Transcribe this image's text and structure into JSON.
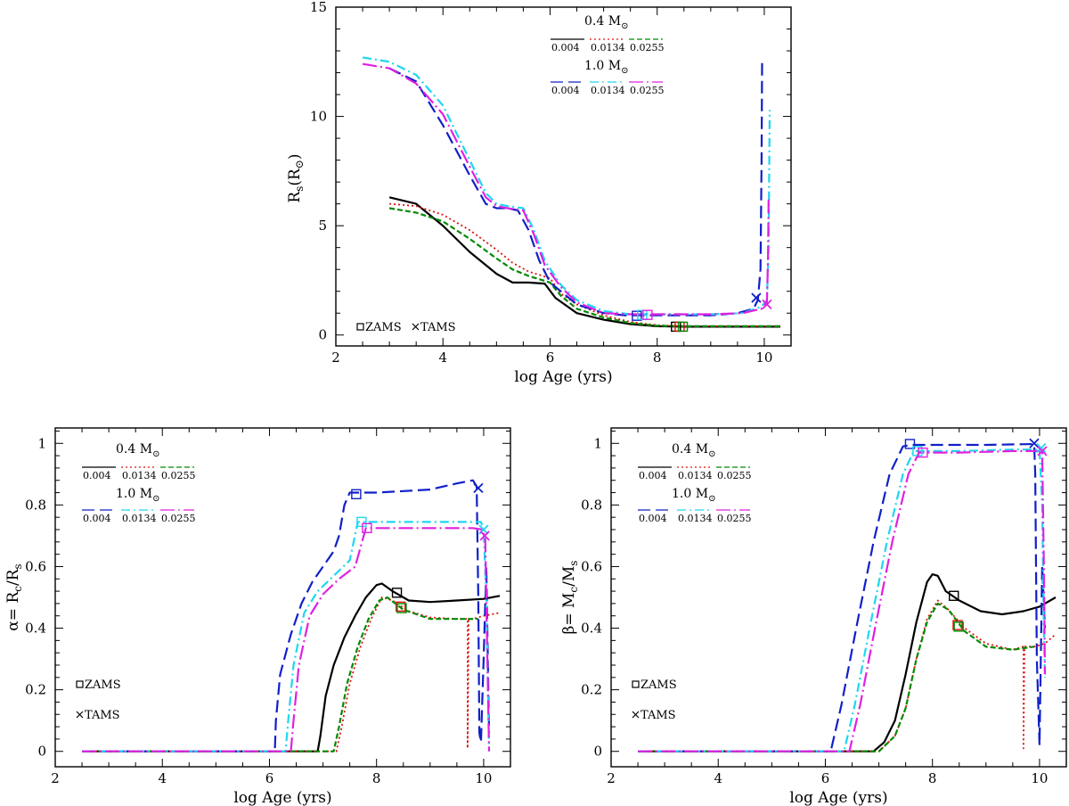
{
  "colors": {
    "black": "#000000",
    "red": "#e01010",
    "green": "#008a00",
    "blue": "#1020c8",
    "cyan": "#1ed6f0",
    "magenta": "#e020e0"
  },
  "chart_data": [
    {
      "id": "top",
      "type": "line",
      "xlabel": "log Age (yrs)",
      "ylabel": "R_s(R_⊙)",
      "ylabel_main": "R",
      "ylabel_sub": "s",
      "ylabel_rest": "(R",
      "ylabel_sun": "⊙",
      "ylabel_close": ")",
      "xlim": [
        2,
        10.5
      ],
      "ylim": [
        -0.5,
        15
      ],
      "xticks": [
        2,
        4,
        6,
        8,
        10
      ],
      "yticks": [
        0,
        5,
        10,
        15
      ],
      "legend": {
        "mass_low": "0.4 M",
        "mass_high": "1.0 M",
        "sun": "⊙",
        "z_values": [
          "0.004",
          "0.0134",
          "0.0255"
        ],
        "zams_label": "ZAMS",
        "tams_label": "TAMS"
      },
      "series": [
        {
          "name": "0.4 M⊙, Z=0.004",
          "color": "black",
          "dash": "solid",
          "x": [
            3.0,
            3.5,
            4.0,
            4.5,
            5.0,
            5.3,
            5.6,
            5.9,
            6.1,
            6.5,
            7.0,
            7.5,
            8.0,
            8.5,
            9.0,
            9.5,
            10.0,
            10.3
          ],
          "y": [
            6.3,
            6.0,
            5.0,
            3.8,
            2.8,
            2.4,
            2.4,
            2.35,
            1.7,
            1.0,
            0.7,
            0.5,
            0.4,
            0.38,
            0.38,
            0.38,
            0.38,
            0.38
          ]
        },
        {
          "name": "0.4 M⊙, Z=0.0134",
          "color": "red",
          "dash": "dot",
          "x": [
            3.0,
            3.5,
            4.0,
            4.5,
            5.0,
            5.3,
            5.6,
            6.0,
            6.2,
            6.5,
            7.0,
            7.5,
            8.0,
            8.5,
            9.0,
            9.5,
            10.0,
            10.3
          ],
          "y": [
            6.0,
            5.9,
            5.5,
            4.8,
            3.9,
            3.3,
            2.9,
            2.6,
            1.9,
            1.4,
            0.9,
            0.6,
            0.45,
            0.4,
            0.4,
            0.4,
            0.4,
            0.4
          ]
        },
        {
          "name": "0.4 M⊙, Z=0.0255",
          "color": "green",
          "dash": "dash-short",
          "x": [
            3.0,
            3.5,
            4.0,
            4.5,
            5.0,
            5.3,
            5.6,
            6.0,
            6.2,
            6.5,
            7.0,
            7.5,
            8.0,
            8.5,
            9.0,
            9.5,
            10.0,
            10.3
          ],
          "y": [
            5.8,
            5.6,
            5.2,
            4.4,
            3.5,
            3.0,
            2.7,
            2.4,
            1.8,
            1.2,
            0.8,
            0.55,
            0.42,
            0.4,
            0.4,
            0.4,
            0.4,
            0.4
          ]
        },
        {
          "name": "1.0 M⊙, Z=0.004",
          "color": "blue",
          "dash": "dash-long",
          "x": [
            3.0,
            3.5,
            4.0,
            4.5,
            4.8,
            5.0,
            5.2,
            5.4,
            5.6,
            5.8,
            6.0,
            6.5,
            7.0,
            7.4,
            8.0,
            9.0,
            9.5,
            9.8,
            9.88,
            9.93,
            9.95,
            9.96
          ],
          "y": [
            12.2,
            11.6,
            9.6,
            7.3,
            6.0,
            5.8,
            5.8,
            5.7,
            4.8,
            3.4,
            2.4,
            1.4,
            1.0,
            0.9,
            0.9,
            0.9,
            1.0,
            1.2,
            1.6,
            3.0,
            8.0,
            12.6
          ]
        },
        {
          "name": "1.0 M⊙, Z=0.0134",
          "color": "cyan",
          "dash": "dash-dot",
          "x": [
            2.5,
            3.0,
            3.5,
            4.0,
            4.5,
            4.8,
            5.0,
            5.2,
            5.5,
            5.7,
            5.9,
            6.2,
            6.5,
            7.0,
            7.5,
            8.0,
            9.0,
            9.6,
            9.95,
            10.05,
            10.08,
            10.1
          ],
          "y": [
            12.7,
            12.5,
            11.9,
            10.5,
            8.0,
            6.5,
            6.0,
            5.9,
            5.8,
            4.8,
            3.4,
            2.3,
            1.6,
            1.1,
            0.95,
            0.95,
            0.95,
            1.0,
            1.3,
            1.6,
            4.0,
            10.3
          ]
        },
        {
          "name": "1.0 M⊙, Z=0.0255",
          "color": "magenta",
          "dash": "dash-dot-long",
          "x": [
            2.5,
            3.0,
            3.5,
            4.0,
            4.5,
            4.8,
            5.0,
            5.2,
            5.5,
            5.7,
            5.9,
            6.2,
            6.5,
            7.0,
            7.5,
            8.0,
            9.0,
            9.6,
            9.95,
            10.05,
            10.07,
            10.08
          ],
          "y": [
            12.4,
            12.2,
            11.5,
            10.1,
            7.7,
            6.3,
            5.9,
            5.8,
            5.7,
            4.6,
            3.2,
            2.2,
            1.5,
            1.0,
            0.95,
            0.95,
            0.95,
            1.0,
            1.2,
            1.5,
            3.5,
            6.2
          ]
        }
      ],
      "markers": [
        {
          "type": "zams",
          "x": 7.62,
          "y": 0.88,
          "color": "blue"
        },
        {
          "type": "zams",
          "x": 7.72,
          "y": 0.92,
          "color": "cyan"
        },
        {
          "type": "zams",
          "x": 7.82,
          "y": 0.92,
          "color": "magenta"
        },
        {
          "type": "zams",
          "x": 8.35,
          "y": 0.38,
          "color": "black"
        },
        {
          "type": "zams",
          "x": 8.42,
          "y": 0.38,
          "color": "red"
        },
        {
          "type": "zams",
          "x": 8.48,
          "y": 0.38,
          "color": "green"
        },
        {
          "type": "tams",
          "x": 9.85,
          "y": 1.7,
          "color": "blue"
        },
        {
          "type": "tams",
          "x": 10.05,
          "y": 1.4,
          "color": "magenta"
        }
      ]
    },
    {
      "id": "bottom-left",
      "type": "line",
      "xlabel": "log Age (yrs)",
      "ylabel": "α= R_c/R_s",
      "ylabel_main": "α= R",
      "ylabel_sub": "c",
      "ylabel_rest": "/R",
      "ylabel_sub2": "s",
      "xlim": [
        2,
        10.5
      ],
      "ylim": [
        -0.05,
        1.05
      ],
      "xticks": [
        2,
        4,
        6,
        8,
        10
      ],
      "yticks": [
        0,
        0.2,
        0.4,
        0.6,
        0.8,
        1
      ],
      "legend": {
        "mass_low": "0.4 M",
        "mass_high": "1.0 M",
        "sun": "⊙",
        "z_values": [
          "0.004",
          "0.0134",
          "0.0255"
        ],
        "zams_label": "ZAMS",
        "tams_label": "TAMS"
      },
      "series": [
        {
          "name": "0.4 M⊙, Z=0.004",
          "color": "black",
          "dash": "solid",
          "x": [
            2.5,
            6.9,
            6.95,
            7.05,
            7.2,
            7.4,
            7.6,
            7.8,
            8.0,
            8.1,
            8.3,
            8.6,
            9.0,
            9.5,
            10.0,
            10.3
          ],
          "y": [
            0,
            0,
            0.05,
            0.18,
            0.28,
            0.37,
            0.44,
            0.5,
            0.54,
            0.545,
            0.52,
            0.49,
            0.485,
            0.49,
            0.495,
            0.505
          ]
        },
        {
          "name": "0.4 M⊙, Z=0.0134",
          "color": "red",
          "dash": "dot",
          "x": [
            2.5,
            7.25,
            7.35,
            7.5,
            7.7,
            7.9,
            8.1,
            8.3,
            8.6,
            9.0,
            9.5,
            9.7,
            9.7,
            9.72,
            9.8,
            10.0,
            10.3
          ],
          "y": [
            0,
            0,
            0.08,
            0.22,
            0.34,
            0.43,
            0.5,
            0.49,
            0.455,
            0.435,
            0.43,
            0.43,
            0.01,
            0.43,
            0.43,
            0.44,
            0.45
          ]
        },
        {
          "name": "0.4 M⊙, Z=0.0255",
          "color": "green",
          "dash": "dash-short",
          "x": [
            2.5,
            7.2,
            7.3,
            7.45,
            7.65,
            7.85,
            8.05,
            8.2,
            8.5,
            9.0,
            9.5,
            9.9
          ],
          "y": [
            0,
            0,
            0.08,
            0.22,
            0.34,
            0.43,
            0.49,
            0.5,
            0.46,
            0.43,
            0.43,
            0.43
          ]
        },
        {
          "name": "1.0 M⊙, Z=0.004",
          "color": "blue",
          "dash": "dash-long",
          "x": [
            2.5,
            6.1,
            6.12,
            6.2,
            6.4,
            6.6,
            6.8,
            7.0,
            7.2,
            7.3,
            7.4,
            7.5,
            7.7,
            8.0,
            8.5,
            9.0,
            9.5,
            9.8,
            9.87,
            9.9,
            9.92,
            9.95,
            10.0,
            10.05,
            10.1
          ],
          "y": [
            0,
            0,
            0.1,
            0.25,
            0.38,
            0.48,
            0.55,
            0.6,
            0.65,
            0.7,
            0.8,
            0.84,
            0.84,
            0.84,
            0.845,
            0.85,
            0.87,
            0.88,
            0.86,
            0.5,
            0.06,
            0.03,
            0.3,
            0.6,
            0.06
          ]
        },
        {
          "name": "1.0 M⊙, Z=0.0134",
          "color": "cyan",
          "dash": "dash-dot",
          "x": [
            2.5,
            6.3,
            6.35,
            6.45,
            6.65,
            6.9,
            7.2,
            7.5,
            7.65,
            8.0,
            9.0,
            9.8,
            9.95,
            10.0,
            10.05,
            10.08,
            10.1
          ],
          "y": [
            0,
            0,
            0.1,
            0.28,
            0.45,
            0.52,
            0.57,
            0.62,
            0.745,
            0.745,
            0.745,
            0.745,
            0.745,
            0.72,
            0.5,
            0.2,
            0.0
          ]
        },
        {
          "name": "1.0 M⊙, Z=0.0255",
          "color": "magenta",
          "dash": "dash-dot-long",
          "x": [
            2.5,
            6.4,
            6.45,
            6.55,
            6.75,
            7.0,
            7.3,
            7.6,
            7.8,
            8.0,
            9.0,
            9.8,
            9.98,
            10.03,
            10.07,
            10.1
          ],
          "y": [
            0,
            0,
            0.1,
            0.28,
            0.44,
            0.51,
            0.56,
            0.6,
            0.725,
            0.725,
            0.725,
            0.725,
            0.72,
            0.69,
            0.3,
            0.0
          ]
        }
      ],
      "markers": [
        {
          "type": "zams",
          "x": 7.62,
          "y": 0.835,
          "color": "blue"
        },
        {
          "type": "zams",
          "x": 7.72,
          "y": 0.745,
          "color": "cyan"
        },
        {
          "type": "zams",
          "x": 7.82,
          "y": 0.725,
          "color": "magenta"
        },
        {
          "type": "zams",
          "x": 8.38,
          "y": 0.515,
          "color": "black"
        },
        {
          "type": "zams",
          "x": 8.45,
          "y": 0.47,
          "color": "red"
        },
        {
          "type": "zams",
          "x": 8.47,
          "y": 0.465,
          "color": "green"
        },
        {
          "type": "tams",
          "x": 9.9,
          "y": 0.855,
          "color": "blue"
        },
        {
          "type": "tams",
          "x": 10.0,
          "y": 0.72,
          "color": "cyan"
        },
        {
          "type": "tams",
          "x": 10.02,
          "y": 0.7,
          "color": "magenta"
        }
      ]
    },
    {
      "id": "bottom-right",
      "type": "line",
      "xlabel": "log Age (yrs)",
      "ylabel": "β= M_c/M_s",
      "ylabel_main": "β= M",
      "ylabel_sub": "c",
      "ylabel_rest": "/M",
      "ylabel_sub2": "s",
      "xlim": [
        2,
        10.5
      ],
      "ylim": [
        -0.05,
        1.05
      ],
      "xticks": [
        2,
        4,
        6,
        8,
        10
      ],
      "yticks": [
        0,
        0.2,
        0.4,
        0.6,
        0.8,
        1
      ],
      "legend": {
        "mass_low": "0.4 M",
        "mass_high": "1.0 M",
        "sun": "⊙",
        "z_values": [
          "0.004",
          "0.0134",
          "0.0255"
        ],
        "zams_label": "ZAMS",
        "tams_label": "TAMS"
      },
      "series": [
        {
          "name": "0.4 M⊙, Z=0.004",
          "color": "black",
          "dash": "solid",
          "x": [
            2.5,
            6.9,
            7.1,
            7.3,
            7.5,
            7.7,
            7.9,
            8.0,
            8.1,
            8.25,
            8.5,
            8.9,
            9.3,
            9.7,
            10.0,
            10.3
          ],
          "y": [
            0,
            0,
            0.03,
            0.1,
            0.25,
            0.42,
            0.55,
            0.575,
            0.57,
            0.52,
            0.49,
            0.455,
            0.445,
            0.455,
            0.47,
            0.5
          ]
        },
        {
          "name": "0.4 M⊙, Z=0.0134",
          "color": "red",
          "dash": "dot",
          "x": [
            2.5,
            7.0,
            7.3,
            7.5,
            7.7,
            7.9,
            8.1,
            8.3,
            8.6,
            9.0,
            9.5,
            9.7,
            9.7,
            9.72,
            9.9,
            10.1,
            10.3
          ],
          "y": [
            0,
            0,
            0.05,
            0.14,
            0.3,
            0.43,
            0.49,
            0.46,
            0.4,
            0.35,
            0.33,
            0.34,
            0.01,
            0.34,
            0.34,
            0.35,
            0.38
          ]
        },
        {
          "name": "0.4 M⊙, Z=0.0255",
          "color": "green",
          "dash": "dash-short",
          "x": [
            2.5,
            7.0,
            7.3,
            7.5,
            7.7,
            7.9,
            8.1,
            8.3,
            8.6,
            9.0,
            9.5,
            9.9
          ],
          "y": [
            0,
            0,
            0.05,
            0.14,
            0.3,
            0.42,
            0.48,
            0.46,
            0.39,
            0.34,
            0.33,
            0.34
          ]
        },
        {
          "name": "1.0 M⊙, Z=0.004",
          "color": "blue",
          "dash": "dash-long",
          "x": [
            2.5,
            6.1,
            6.3,
            6.6,
            6.9,
            7.2,
            7.45,
            7.6,
            8.0,
            9.0,
            9.9,
            9.92,
            9.95,
            10.0,
            10.05,
            10.1
          ],
          "y": [
            0,
            0,
            0.15,
            0.42,
            0.68,
            0.9,
            0.99,
            0.995,
            0.995,
            0.995,
            0.998,
            0.9,
            0.3,
            0.02,
            0.6,
            0.4
          ]
        },
        {
          "name": "1.0 M⊙, Z=0.0134",
          "color": "cyan",
          "dash": "dash-dot",
          "x": [
            2.5,
            6.35,
            6.55,
            6.85,
            7.15,
            7.45,
            7.65,
            7.8,
            8.5,
            9.5,
            10.0,
            10.05,
            10.08,
            10.1
          ],
          "y": [
            0,
            0,
            0.15,
            0.42,
            0.68,
            0.9,
            0.975,
            0.975,
            0.975,
            0.98,
            0.98,
            0.8,
            0.4,
            0.24
          ]
        },
        {
          "name": "1.0 M⊙, Z=0.0255",
          "color": "magenta",
          "dash": "dash-dot-long",
          "x": [
            2.5,
            6.45,
            6.65,
            6.95,
            7.25,
            7.55,
            7.75,
            7.9,
            8.5,
            9.5,
            10.05,
            10.08,
            10.1
          ],
          "y": [
            0,
            0,
            0.15,
            0.42,
            0.68,
            0.9,
            0.97,
            0.97,
            0.97,
            0.975,
            0.975,
            0.6,
            0.25
          ]
        }
      ],
      "markers": [
        {
          "type": "zams",
          "x": 7.58,
          "y": 0.998,
          "color": "blue"
        },
        {
          "type": "zams",
          "x": 7.72,
          "y": 0.975,
          "color": "cyan"
        },
        {
          "type": "zams",
          "x": 7.82,
          "y": 0.97,
          "color": "magenta"
        },
        {
          "type": "zams",
          "x": 8.4,
          "y": 0.505,
          "color": "black"
        },
        {
          "type": "zams",
          "x": 8.47,
          "y": 0.41,
          "color": "red"
        },
        {
          "type": "zams",
          "x": 8.49,
          "y": 0.405,
          "color": "green"
        },
        {
          "type": "tams",
          "x": 9.9,
          "y": 1.0,
          "color": "blue"
        },
        {
          "type": "tams",
          "x": 10.03,
          "y": 0.985,
          "color": "cyan"
        },
        {
          "type": "tams",
          "x": 10.05,
          "y": 0.975,
          "color": "magenta"
        }
      ]
    }
  ]
}
